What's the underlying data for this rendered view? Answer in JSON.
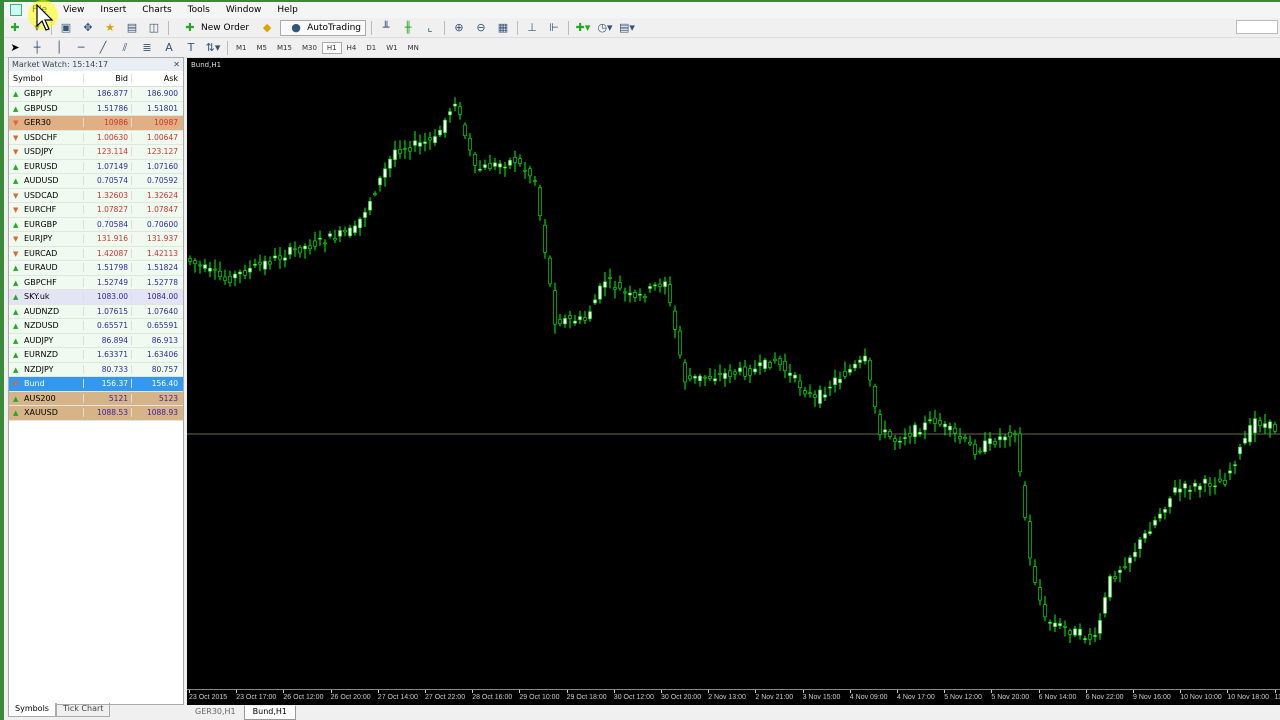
{
  "menu": [
    "File",
    "View",
    "Insert",
    "Charts",
    "Tools",
    "Window",
    "Help"
  ],
  "toolbar": {
    "new_order": "New Order",
    "autotrading": "AutoTrading",
    "timeframes": [
      "M1",
      "M5",
      "M15",
      "M30",
      "H1",
      "H4",
      "D1",
      "W1",
      "MN"
    ],
    "active_timeframe": "H1"
  },
  "market_watch": {
    "title": "Market Watch: 15:14:17",
    "columns": [
      "Symbol",
      "Bid",
      "Ask"
    ],
    "rows": [
      {
        "symbol": "GBPJPY",
        "bid": "186.877",
        "ask": "186.900",
        "dir": "up"
      },
      {
        "symbol": "GBPUSD",
        "bid": "1.51786",
        "ask": "1.51801",
        "dir": "up"
      },
      {
        "symbol": "GER30",
        "bid": "10986",
        "ask": "10987",
        "dir": "dn"
      },
      {
        "symbol": "USDCHF",
        "bid": "1.00630",
        "ask": "1.00647",
        "dir": "dn"
      },
      {
        "symbol": "USDJPY",
        "bid": "123.114",
        "ask": "123.127",
        "dir": "dn"
      },
      {
        "symbol": "EURUSD",
        "bid": "1.07149",
        "ask": "1.07160",
        "dir": "up"
      },
      {
        "symbol": "AUDUSD",
        "bid": "0.70574",
        "ask": "0.70592",
        "dir": "up"
      },
      {
        "symbol": "USDCAD",
        "bid": "1.32603",
        "ask": "1.32624",
        "dir": "dn"
      },
      {
        "symbol": "EURCHF",
        "bid": "1.07827",
        "ask": "1.07847",
        "dir": "dn"
      },
      {
        "symbol": "EURGBP",
        "bid": "0.70584",
        "ask": "0.70600",
        "dir": "up"
      },
      {
        "symbol": "EURJPY",
        "bid": "131.916",
        "ask": "131.937",
        "dir": "dn"
      },
      {
        "symbol": "EURCAD",
        "bid": "1.42087",
        "ask": "1.42113",
        "dir": "dn"
      },
      {
        "symbol": "EURAUD",
        "bid": "1.51798",
        "ask": "1.51824",
        "dir": "up"
      },
      {
        "symbol": "GBPCHF",
        "bid": "1.52749",
        "ask": "1.52778",
        "dir": "up"
      },
      {
        "symbol": "SKY.uk",
        "bid": "1083.00",
        "ask": "1084.00",
        "dir": "up"
      },
      {
        "symbol": "AUDNZD",
        "bid": "1.07615",
        "ask": "1.07640",
        "dir": "up"
      },
      {
        "symbol": "NZDUSD",
        "bid": "0.65571",
        "ask": "0.65591",
        "dir": "up"
      },
      {
        "symbol": "AUDJPY",
        "bid": "86.894",
        "ask": "86.913",
        "dir": "up"
      },
      {
        "symbol": "EURNZD",
        "bid": "1.63371",
        "ask": "1.63406",
        "dir": "up"
      },
      {
        "symbol": "NZDJPY",
        "bid": "80.733",
        "ask": "80.757",
        "dir": "up"
      },
      {
        "symbol": "Bund",
        "bid": "156.37",
        "ask": "156.40",
        "dir": "dn"
      },
      {
        "symbol": "AUS200",
        "bid": "5121",
        "ask": "5123",
        "dir": "up"
      },
      {
        "symbol": "XAUUSD",
        "bid": "1088.53",
        "ask": "1088.93",
        "dir": "up"
      }
    ],
    "tabs": [
      "Symbols",
      "Tick Chart"
    ]
  },
  "chart": {
    "label": "Bund,H1",
    "x_labels": [
      "23 Oct 2015",
      "23 Oct 17:00",
      "26 Oct 12:00",
      "26 Oct 20:00",
      "27 Oct 14:00",
      "27 Oct 22:00",
      "28 Oct 16:00",
      "29 Oct 10:00",
      "29 Oct 18:00",
      "30 Oct 12:00",
      "30 Oct 20:00",
      "2 Nov 13:00",
      "2 Nov 21:00",
      "3 Nov 15:00",
      "4 Nov 09:00",
      "4 Nov 17:00",
      "5 Nov 12:00",
      "5 Nov 20:00",
      "6 Nov 14:00",
      "6 Nov 22:00",
      "9 Nov 16:00",
      "10 Nov 10:00",
      "10 Nov 18:00",
      "11 Nov"
    ],
    "candle_color": "#00ff00"
  },
  "chart_tabs": [
    "GER30,H1",
    "Bund,H1"
  ],
  "active_chart_tab": "Bund,H1"
}
